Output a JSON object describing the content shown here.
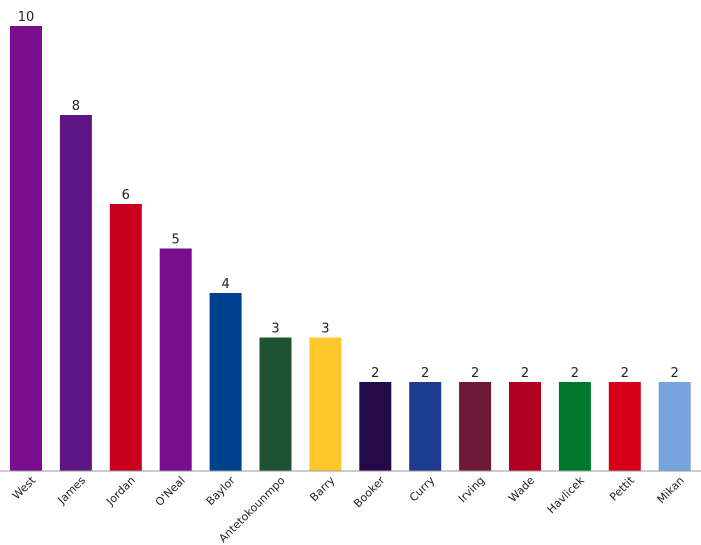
{
  "chart_data": {
    "type": "bar",
    "title": "",
    "xlabel": "",
    "ylabel": "",
    "ylim": [
      0,
      10
    ],
    "grid": false,
    "categories": [
      "West",
      "James",
      "Jordan",
      "O'Neal",
      "Baylor",
      "Antetokounmpo",
      "Barry",
      "Booker",
      "Curry",
      "Irving",
      "Wade",
      "Havlicek",
      "Pettit",
      "Mikan"
    ],
    "values": [
      10,
      8,
      6,
      5,
      4,
      3,
      3,
      2,
      2,
      2,
      2,
      2,
      2,
      2
    ],
    "colors": [
      "#7a0f8d",
      "#5e1585",
      "#c8001e",
      "#7a0f8d",
      "#00418f",
      "#1d5233",
      "#ffc72c",
      "#250a4a",
      "#1d3c8f",
      "#6f1939",
      "#b00022",
      "#00792f",
      "#d50019",
      "#77a3de"
    ],
    "axis_color": "#999999"
  }
}
